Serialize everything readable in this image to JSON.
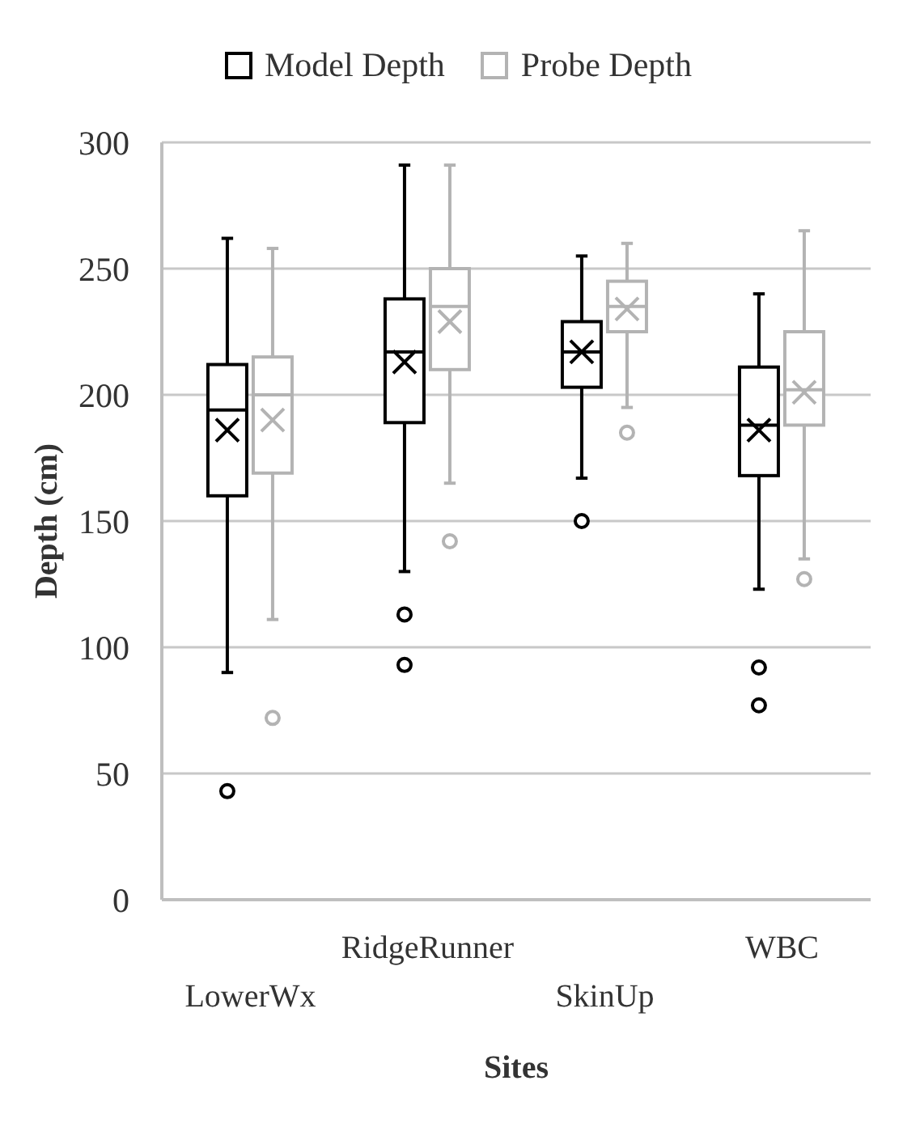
{
  "chart_data": {
    "type": "box",
    "xlabel": "Sites",
    "ylabel": "Depth (cm)",
    "categories": [
      "LowerWx",
      "RidgeRunner",
      "SkinUp",
      "WBC"
    ],
    "ylim": [
      0,
      300
    ],
    "yticks": [
      0,
      50,
      100,
      150,
      200,
      250,
      300
    ],
    "grid": "y",
    "legend": "top",
    "marker": "cross",
    "series": [
      {
        "name": "Model Depth",
        "color": "#000000",
        "boxes": [
          {
            "low": 90,
            "q1": 160,
            "median": 194,
            "q3": 212,
            "high": 262,
            "mean": 186,
            "outliers": [
              43
            ]
          },
          {
            "low": 130,
            "q1": 189,
            "median": 217,
            "q3": 238,
            "high": 291,
            "mean": 213,
            "outliers": [
              113,
              93
            ]
          },
          {
            "low": 167,
            "q1": 203,
            "median": 217,
            "q3": 229,
            "high": 255,
            "mean": 217,
            "outliers": [
              150
            ]
          },
          {
            "low": 123,
            "q1": 168,
            "median": 188,
            "q3": 211,
            "high": 240,
            "mean": 186,
            "outliers": [
              92,
              77
            ]
          }
        ]
      },
      {
        "name": "Probe Depth",
        "color": "#b3b3b3",
        "boxes": [
          {
            "low": 111,
            "q1": 169,
            "median": 200,
            "q3": 215,
            "high": 258,
            "mean": 190,
            "outliers": [
              72
            ]
          },
          {
            "low": 165,
            "q1": 210,
            "median": 235,
            "q3": 250,
            "high": 291,
            "mean": 229,
            "outliers": [
              142
            ]
          },
          {
            "low": 195,
            "q1": 225,
            "median": 235,
            "q3": 245,
            "high": 260,
            "mean": 234,
            "outliers": [
              185
            ]
          },
          {
            "low": 135,
            "q1": 188,
            "median": 202,
            "q3": 225,
            "high": 265,
            "mean": 201,
            "outliers": [
              127
            ]
          }
        ]
      }
    ]
  }
}
